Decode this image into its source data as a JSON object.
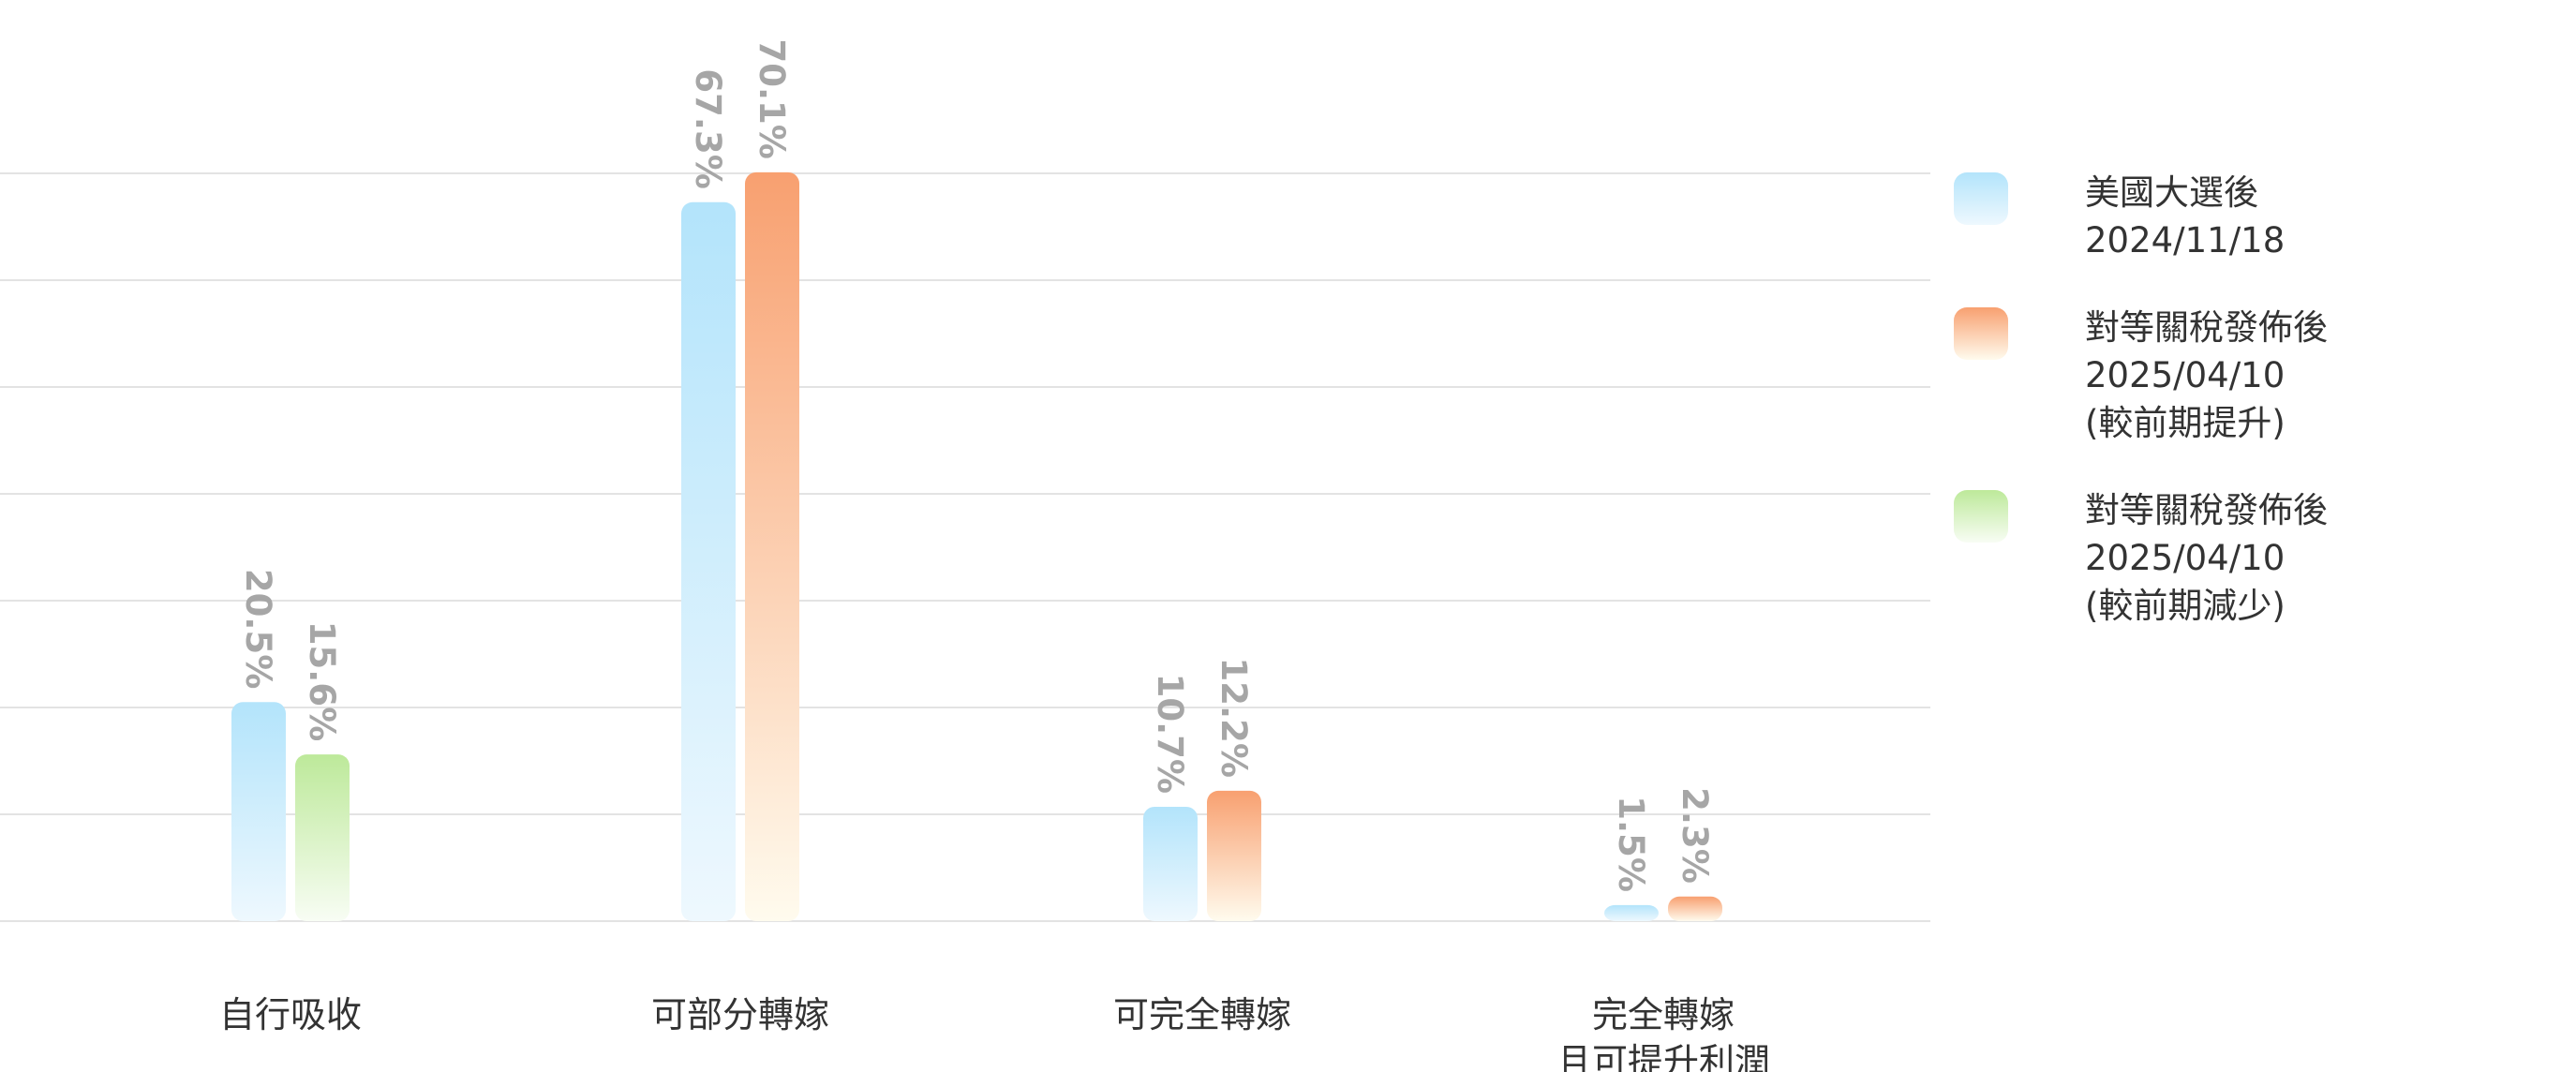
{
  "chart_data": {
    "type": "bar",
    "ylim": [
      0,
      70
    ],
    "grid": true,
    "legend_position": "right",
    "groups": [
      {
        "category": [
          "自行吸收"
        ],
        "bars": [
          {
            "series": 0,
            "value": 20.5,
            "label": "20.5%"
          },
          {
            "series": 2,
            "value": 15.6,
            "label": "15.6%"
          }
        ]
      },
      {
        "category": [
          "可部分轉嫁"
        ],
        "bars": [
          {
            "series": 0,
            "value": 67.3,
            "label": "67.3%"
          },
          {
            "series": 1,
            "value": 70.1,
            "label": "70.1%"
          }
        ]
      },
      {
        "category": [
          "可完全轉嫁"
        ],
        "bars": [
          {
            "series": 0,
            "value": 10.7,
            "label": "10.7%"
          },
          {
            "series": 1,
            "value": 12.2,
            "label": "12.2%"
          }
        ]
      },
      {
        "category": [
          "完全轉嫁",
          "且可提升利潤"
        ],
        "bars": [
          {
            "series": 0,
            "value": 1.5,
            "label": "1.5%"
          },
          {
            "series": 1,
            "value": 2.3,
            "label": "2.3%"
          }
        ]
      }
    ],
    "series": [
      {
        "name": [
          "美國大選後",
          "2024/11/18"
        ],
        "color": "#b3e4fb",
        "color_fade": "#eef8fe"
      },
      {
        "name": [
          "對等關稅發佈後",
          "2025/04/10",
          "(較前期提升)"
        ],
        "color": "#f8a070",
        "color_fade": "#fffbee"
      },
      {
        "name": [
          "對等關稅發佈後",
          "2025/04/10",
          "(較前期減少)"
        ],
        "color": "#bde99a",
        "color_fade": "#f8fdf4"
      }
    ]
  }
}
